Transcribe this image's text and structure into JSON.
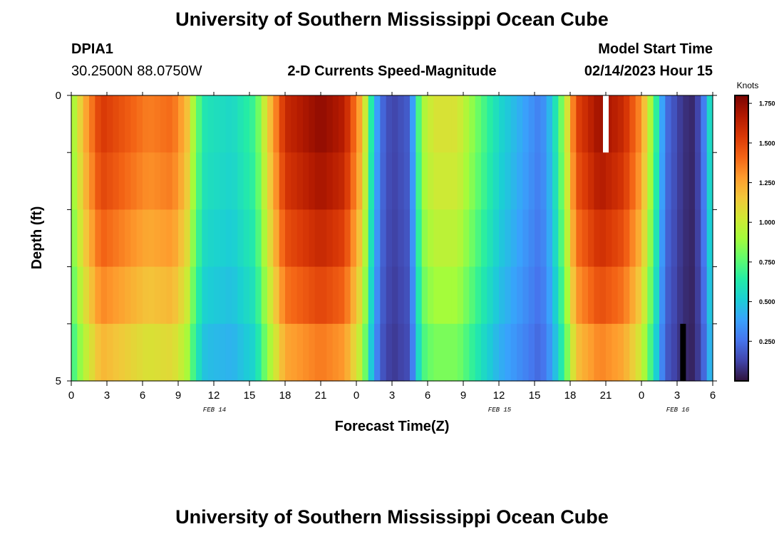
{
  "header": {
    "title": "University of Southern Mississippi Ocean Cube",
    "station": "DPIA1",
    "coords": "30.2500N  88.0750W",
    "plot_title": "2-D Currents Speed-Magnitude",
    "model_label": "Model Start Time",
    "model_time": "02/14/2023 Hour 15",
    "footer_title": "University of Southern Mississippi Ocean Cube"
  },
  "chart_data": {
    "type": "heatmap",
    "title": "2-D Currents Speed-Magnitude",
    "xlabel": "Forecast Time(Z)",
    "ylabel": "Depth (ft)",
    "colorbar_label": "Knots",
    "x_tick_labels": [
      "0",
      "3",
      "6",
      "9",
      "12",
      "15",
      "18",
      "21",
      "0",
      "3",
      "6",
      "9",
      "12",
      "15",
      "18",
      "21",
      "0",
      "3",
      "6"
    ],
    "x_tick_hours": [
      0,
      3,
      6,
      9,
      12,
      15,
      18,
      21,
      24,
      27,
      30,
      33,
      36,
      39,
      42,
      45,
      48,
      51,
      54
    ],
    "xlim": [
      0,
      54
    ],
    "date_labels": [
      {
        "label": "FEB 14",
        "hour": 12
      },
      {
        "label": "FEB 15",
        "hour": 36
      },
      {
        "label": "FEB 16",
        "hour": 51
      }
    ],
    "y_tick_labels": [
      "0",
      "5"
    ],
    "ylim": [
      0,
      5
    ],
    "depth_levels": 5,
    "colorbar_ticks": [
      "0.250",
      "0.500",
      "0.750",
      "1.000",
      "1.250",
      "1.500",
      "1.750"
    ],
    "colorbar_range": [
      0.0,
      1.8
    ],
    "colorscale": [
      "#30123b",
      "#4145ab",
      "#4675ed",
      "#39a2fc",
      "#1bcfd4",
      "#24eca6",
      "#61fc6c",
      "#a4fc3b",
      "#d1e834",
      "#f3c63a",
      "#fe9b2d",
      "#f36315",
      "#d93806",
      "#b11901",
      "#7a0402"
    ],
    "speed_profile_knots_top": [
      [
        0.0,
        0.85
      ],
      [
        1.0,
        1.2
      ],
      [
        2.5,
        1.55
      ],
      [
        4.5,
        1.45
      ],
      [
        6.5,
        1.35
      ],
      [
        8.5,
        1.4
      ],
      [
        9.7,
        1.2
      ],
      [
        10.5,
        0.8
      ],
      [
        11.3,
        0.6
      ],
      [
        13.5,
        0.55
      ],
      [
        15.5,
        0.7
      ],
      [
        16.5,
        1.1
      ],
      [
        18.0,
        1.6
      ],
      [
        21.0,
        1.75
      ],
      [
        23.0,
        1.65
      ],
      [
        24.5,
        1.2
      ],
      [
        25.3,
        0.6
      ],
      [
        26.0,
        0.25
      ],
      [
        27.0,
        0.12
      ],
      [
        28.5,
        0.2
      ],
      [
        29.5,
        0.9
      ],
      [
        30.5,
        1.05
      ],
      [
        32.5,
        1.05
      ],
      [
        34.5,
        0.75
      ],
      [
        36.0,
        0.55
      ],
      [
        38.0,
        0.4
      ],
      [
        39.5,
        0.28
      ],
      [
        40.5,
        0.5
      ],
      [
        41.5,
        0.9
      ],
      [
        42.5,
        1.5
      ],
      [
        44.5,
        1.72
      ],
      [
        46.5,
        1.6
      ],
      [
        48.0,
        1.3
      ],
      [
        49.0,
        0.8
      ],
      [
        50.0,
        0.25
      ],
      [
        51.5,
        0.08
      ],
      [
        52.5,
        0.05
      ],
      [
        53.3,
        0.3
      ],
      [
        54.0,
        0.7
      ]
    ],
    "depth_factors": [
      1.0,
      0.97,
      0.92,
      0.86,
      0.78
    ],
    "missing_cells": [
      {
        "hour": 45,
        "depth_layer": 1
      },
      {
        "hour": 51.5,
        "depth_layer": 5
      }
    ]
  }
}
